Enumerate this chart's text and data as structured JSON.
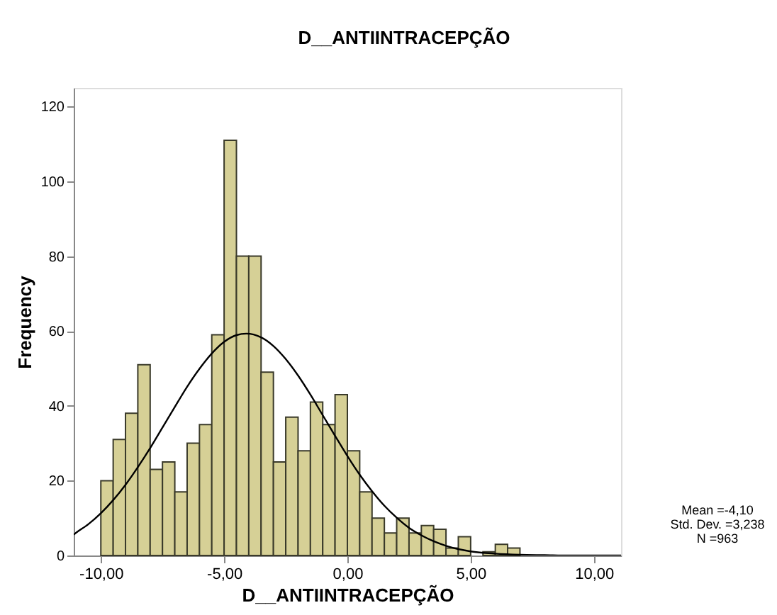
{
  "chart_data": {
    "type": "histogram",
    "title": "D__ANTIINTRACEPÇÃO",
    "xlabel": "D__ANTIINTRACEPÇÃO",
    "ylabel": "Frequency",
    "bins": [
      -10,
      -9.5,
      -9,
      -8.5,
      -8,
      -7.5,
      -7,
      -6.5,
      -6,
      -5.5,
      -5,
      -4.5,
      -4,
      -3.5,
      -3,
      -2.5,
      -2,
      -1.5,
      -1,
      -0.5,
      0,
      0.5,
      1,
      1.5,
      2,
      2.5,
      3,
      3.5,
      4,
      4.5,
      5,
      5.5,
      6,
      6.5,
      7
    ],
    "values": [
      20,
      31,
      38,
      51,
      23,
      25,
      17,
      30,
      35,
      59,
      111,
      80,
      80,
      49,
      25,
      37,
      28,
      41,
      35,
      43,
      28,
      17,
      10,
      6,
      10,
      6,
      8,
      7,
      2,
      5,
      0,
      1,
      3,
      2
    ],
    "color": "#d6d096",
    "series": [
      {
        "type": "line",
        "color": "#000000",
        "x": [
          -11.1,
          -11,
          -10.5,
          -10,
          -9.5,
          -9,
          -8.5,
          -8,
          -7.5,
          -7,
          -6.5,
          -6,
          -5.5,
          -5,
          -4.5,
          -4.1,
          -3.5,
          -3,
          -2.5,
          -2,
          -1.5,
          -1,
          -0.5,
          0,
          0.5,
          1,
          1.5,
          2,
          2.5,
          3,
          3.5,
          4,
          4.5,
          5,
          6,
          7,
          8,
          9,
          10,
          11.1
        ],
        "values": [
          5.6,
          6.1,
          8.4,
          11.3,
          14.8,
          18.9,
          23.6,
          28.7,
          34.2,
          39.7,
          45.1,
          49.9,
          54.0,
          57.1,
          58.9,
          59.3,
          58.3,
          56.0,
          52.5,
          48.1,
          43.0,
          37.5,
          32.0,
          26.6,
          21.6,
          17.2,
          13.3,
          10.1,
          7.4,
          5.4,
          3.8,
          2.6,
          1.7,
          1.1,
          0.5,
          0.2,
          0.1,
          0,
          0,
          0
        ]
      }
    ],
    "xlim": [
      -11.1,
      11.1
    ],
    "xticks": [
      {
        "value": -10,
        "label": "-10,00"
      },
      {
        "value": -5,
        "label": "-5,00"
      },
      {
        "value": 0,
        "label": "0,00"
      },
      {
        "value": 5,
        "label": "5,00"
      },
      {
        "value": 10,
        "label": "10,00"
      }
    ],
    "ylim": [
      0,
      125
    ],
    "yticks": [
      0,
      20,
      40,
      60,
      80,
      100,
      120
    ],
    "grid": false,
    "annotations": [
      "Mean =-4,10",
      "Std. Dev. =3,238",
      "N =963"
    ]
  }
}
